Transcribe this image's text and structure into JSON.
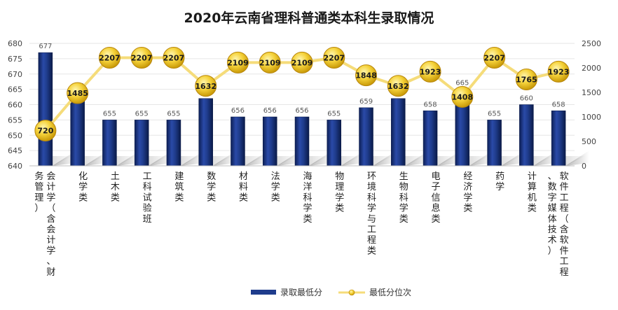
{
  "chart_data": {
    "type": "bar",
    "title": "2020年云南省理科普通类本科生录取情况",
    "categories": [
      "会计学（含会计学、财务管理）",
      "化学类",
      "土木类",
      "工科试验班",
      "建筑类",
      "数学类",
      "材料类",
      "法学类",
      "海洋科学类",
      "物理学类",
      "环境科学与工程类",
      "生物科学类",
      "电子信息类",
      "经济学类",
      "药学",
      "计算机类",
      "软件工程（含软件工程、数字媒体技术）"
    ],
    "series": [
      {
        "name": "录取最低分",
        "type": "bar",
        "axis": "left",
        "values": [
          677,
          664,
          655,
          655,
          655,
          662,
          656,
          656,
          656,
          655,
          659,
          662,
          658,
          665,
          655,
          660,
          658
        ]
      },
      {
        "name": "最低分位次",
        "type": "line",
        "axis": "right",
        "values": [
          720,
          1485,
          2207,
          2207,
          2207,
          1632,
          2109,
          2109,
          2109,
          2207,
          1848,
          1632,
          1923,
          1408,
          2207,
          1765,
          1923
        ]
      }
    ],
    "y_left": {
      "min": 640,
      "max": 680,
      "ticks": [
        640,
        645,
        650,
        655,
        660,
        665,
        670,
        675,
        680
      ]
    },
    "y_right": {
      "min": 0,
      "max": 2500,
      "ticks": [
        0,
        500,
        1000,
        1500,
        2000,
        2500
      ]
    },
    "legend": {
      "position": "bottom",
      "items": [
        "录取最低分",
        "最低分位次"
      ]
    },
    "colors": {
      "bar": "#1f3c8c",
      "bar_light": "#4a6fc8",
      "bar_dark": "#0d1f55",
      "line": "#f5dc7a",
      "marker": "#f2c21a",
      "marker_edge": "#b8860b",
      "grid": "#e6e6e6"
    }
  }
}
